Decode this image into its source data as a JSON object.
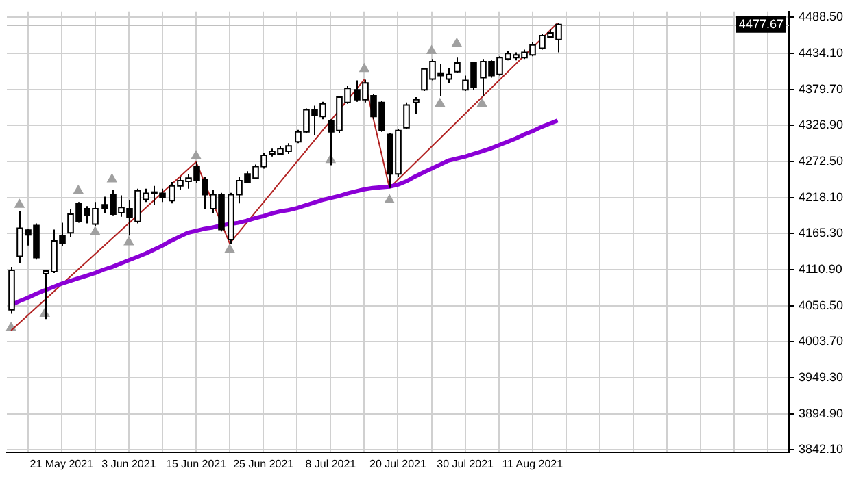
{
  "chart_data": {
    "type": "candlestick",
    "categories": [
      null,
      null,
      null,
      null,
      null,
      null,
      "21 May 2021",
      null,
      null,
      null,
      null,
      null,
      null,
      null,
      "3 Jun 2021",
      null,
      null,
      null,
      null,
      null,
      null,
      null,
      "15 Jun 2021",
      null,
      null,
      null,
      null,
      null,
      null,
      null,
      "25 Jun 2021",
      null,
      null,
      null,
      null,
      null,
      null,
      null,
      "8 Jul 2021",
      null,
      null,
      null,
      null,
      null,
      null,
      null,
      "20 Jul 2021",
      null,
      null,
      null,
      null,
      null,
      null,
      null,
      "30 Jul 2021",
      null,
      null,
      null,
      null,
      null,
      null,
      null,
      "11 Aug 2021",
      null,
      null,
      null,
      null,
      null,
      null,
      null,
      null,
      null,
      null,
      null,
      null,
      null,
      null,
      null,
      null,
      null,
      null,
      null,
      null,
      null,
      null,
      null,
      null,
      null,
      null,
      null,
      null,
      null,
      null
    ],
    "ohlc": [
      [
        4051,
        4115,
        4045,
        4110
      ],
      [
        4131,
        4198,
        4121,
        4173
      ],
      [
        4170,
        4172,
        4147,
        4163
      ],
      [
        4177,
        4180,
        4126,
        4129
      ],
      [
        4105,
        4110,
        4037,
        4109
      ],
      [
        4108,
        4171,
        4106,
        4154
      ],
      [
        4162,
        4181,
        4146,
        4150
      ],
      [
        4166,
        4202,
        4160,
        4194
      ],
      [
        4210,
        4212,
        4181,
        4183
      ],
      [
        4202,
        4206,
        4180,
        4192
      ],
      [
        4179,
        4212,
        4176,
        4202
      ],
      [
        4208,
        4220,
        4196,
        4202
      ],
      [
        4223,
        4230,
        4192,
        4194
      ],
      [
        4196,
        4222,
        4190,
        4204
      ],
      [
        4202,
        4215,
        4162,
        4189
      ],
      [
        4183,
        4232,
        4180,
        4229
      ],
      [
        4216,
        4232,
        4212,
        4225
      ],
      [
        4225,
        4236,
        4208,
        4227
      ],
      [
        4225,
        4232,
        4212,
        4219
      ],
      [
        4214,
        4242,
        4210,
        4236
      ],
      [
        4236,
        4250,
        4230,
        4244
      ],
      [
        4243,
        4254,
        4232,
        4248
      ],
      [
        4265,
        4272,
        4240,
        4244
      ],
      [
        4246,
        4250,
        4202,
        4223
      ],
      [
        4202,
        4230,
        4195,
        4223
      ],
      [
        4223,
        4226,
        4168,
        4171
      ],
      [
        4156,
        4226,
        4150,
        4223
      ],
      [
        4223,
        4250,
        4210,
        4244
      ],
      [
        4254,
        4258,
        4240,
        4242
      ],
      [
        4248,
        4268,
        4246,
        4265
      ],
      [
        4265,
        4286,
        4262,
        4282
      ],
      [
        4284,
        4292,
        4280,
        4288
      ],
      [
        4284,
        4296,
        4282,
        4292
      ],
      [
        4288,
        4300,
        4284,
        4296
      ],
      [
        4302,
        4320,
        4300,
        4317
      ],
      [
        4317,
        4352,
        4315,
        4350
      ],
      [
        4350,
        4356,
        4312,
        4342
      ],
      [
        4340,
        4362,
        4336,
        4359
      ],
      [
        4334,
        4336,
        4267,
        4317
      ],
      [
        4319,
        4371,
        4315,
        4369
      ],
      [
        4361,
        4386,
        4359,
        4382
      ],
      [
        4380,
        4394,
        4362,
        4365
      ],
      [
        4365,
        4395,
        4361,
        4390
      ],
      [
        4371,
        4374,
        4336,
        4340
      ],
      [
        4361,
        4363,
        4317,
        4319
      ],
      [
        4313,
        4315,
        4233,
        4254
      ],
      [
        4254,
        4321,
        4250,
        4319
      ],
      [
        4323,
        4361,
        4321,
        4357
      ],
      [
        4361,
        4369,
        4344,
        4365
      ],
      [
        4380,
        4413,
        4378,
        4411
      ],
      [
        4396,
        4426,
        4394,
        4422
      ],
      [
        4405,
        4418,
        4371,
        4401
      ],
      [
        4396,
        4413,
        4390,
        4403
      ],
      [
        4407,
        4428,
        4405,
        4420
      ],
      [
        4380,
        4401,
        4378,
        4394
      ],
      [
        4420,
        4422,
        4380,
        4384
      ],
      [
        4398,
        4426,
        4371,
        4422
      ],
      [
        4422,
        4424,
        4398,
        4401
      ],
      [
        4403,
        4430,
        4401,
        4428
      ],
      [
        4426,
        4438,
        4424,
        4434
      ],
      [
        4428,
        4436,
        4424,
        4432
      ],
      [
        4428,
        4440,
        4426,
        4436
      ],
      [
        4432,
        4451,
        4430,
        4447
      ],
      [
        4442,
        4463,
        4440,
        4461
      ],
      [
        4459,
        4470,
        4457,
        4465
      ],
      [
        4455,
        4480,
        4436,
        4477.67
      ],
      null,
      null,
      null,
      null,
      null,
      null,
      null,
      null,
      null,
      null,
      null,
      null,
      null,
      null,
      null,
      null,
      null,
      null,
      null,
      null,
      null,
      null,
      null,
      null,
      null,
      null,
      null
    ],
    "series": [
      {
        "type": "line",
        "color": "#8b00d6",
        "marker": "none",
        "values": [
          4058,
          4064,
          4069,
          4075,
          4080,
          4085,
          4090,
          4094,
          4098,
          4102,
          4106,
          4111,
          4115,
          4120,
          4125,
          4130,
          4135,
          4141,
          4147,
          4154,
          4160,
          4166,
          4169,
          4172,
          4174,
          4177,
          4179,
          4181,
          4184,
          4188,
          4191,
          4195,
          4198,
          4200,
          4203,
          4207,
          4211,
          4215,
          4218,
          4221,
          4225,
          4228,
          4231,
          4233,
          4234,
          4235,
          4238,
          4243,
          4250,
          4256,
          4262,
          4268,
          4274,
          4277,
          4280,
          4284,
          4288,
          4292,
          4297,
          4302,
          4307,
          4313,
          4318,
          4324,
          4329,
          4334,
          null,
          null,
          null,
          null,
          null,
          null,
          null,
          null,
          null,
          null,
          null,
          null,
          null,
          null,
          null,
          null,
          null,
          null,
          null,
          null,
          null,
          null,
          null,
          null,
          null,
          null,
          null
        ]
      },
      {
        "type": "line",
        "color": "#b22222",
        "marker": "none",
        "values": [
          4020,
          null,
          null,
          null,
          null,
          null,
          null,
          null,
          null,
          null,
          null,
          null,
          null,
          null,
          null,
          null,
          null,
          null,
          null,
          null,
          null,
          null,
          4272,
          null,
          null,
          null,
          4150,
          null,
          null,
          null,
          null,
          null,
          null,
          null,
          null,
          null,
          null,
          null,
          null,
          null,
          null,
          null,
          4395,
          null,
          null,
          4233,
          null,
          null,
          null,
          null,
          null,
          null,
          null,
          null,
          null,
          null,
          null,
          null,
          null,
          null,
          null,
          null,
          null,
          null,
          null,
          4480,
          null,
          null,
          null,
          null,
          null,
          null,
          null,
          null,
          null,
          null,
          null,
          null,
          null,
          null,
          null,
          null,
          null,
          null,
          null,
          null,
          null,
          null,
          null,
          null,
          null,
          null,
          null
        ]
      },
      {
        "type": "scatter",
        "color": "#a0a0a0",
        "marker": "triangle",
        "values": [
          null,
          4208,
          null,
          null,
          null,
          null,
          null,
          null,
          4229,
          null,
          null,
          null,
          4246,
          null,
          null,
          null,
          null,
          null,
          null,
          null,
          null,
          null,
          4281,
          null,
          null,
          null,
          null,
          null,
          null,
          null,
          null,
          null,
          null,
          null,
          null,
          null,
          null,
          null,
          null,
          null,
          null,
          null,
          4411,
          null,
          null,
          null,
          null,
          null,
          null,
          null,
          4438,
          null,
          null,
          4449,
          null,
          null,
          null,
          null,
          null,
          null,
          null,
          null,
          null,
          null,
          null,
          null,
          null,
          null,
          null,
          null,
          null,
          null,
          null,
          null,
          null,
          null,
          null,
          null,
          null,
          null,
          null,
          null,
          null,
          null,
          null,
          null,
          null,
          null,
          null,
          null,
          null,
          null,
          null
        ]
      },
      {
        "type": "scatter",
        "color": "#a0a0a0",
        "marker": "triangle",
        "values": [
          4024,
          null,
          null,
          null,
          4045,
          null,
          null,
          null,
          null,
          null,
          4167,
          null,
          null,
          null,
          4152,
          null,
          null,
          null,
          null,
          null,
          null,
          null,
          null,
          null,
          null,
          null,
          4141,
          null,
          null,
          null,
          null,
          null,
          null,
          null,
          null,
          null,
          null,
          null,
          4275,
          null,
          null,
          null,
          null,
          null,
          null,
          4215,
          null,
          null,
          null,
          null,
          null,
          4359,
          null,
          null,
          null,
          null,
          4359,
          null,
          null,
          null,
          null,
          null,
          null,
          null,
          null,
          null,
          null,
          null,
          null,
          null,
          null,
          null,
          null,
          null,
          null,
          null,
          null,
          null,
          null,
          null,
          null,
          null,
          null,
          null,
          null,
          null,
          null,
          null,
          null,
          null,
          null,
          null,
          null
        ]
      }
    ],
    "ylim": [
      3838,
      4497
    ],
    "yticks": [
      {
        "value": 3842.1,
        "label": "3842.10"
      },
      {
        "value": 3894.9,
        "label": "3894.90"
      },
      {
        "value": 3949.3,
        "label": "3949.30"
      },
      {
        "value": 4003.7,
        "label": "4003.70"
      },
      {
        "value": 4056.5,
        "label": "4056.50"
      },
      {
        "value": 4110.9,
        "label": "4110.90"
      },
      {
        "value": 4165.3,
        "label": "4165.30"
      },
      {
        "value": 4218.1,
        "label": "4218.10"
      },
      {
        "value": 4272.5,
        "label": "4272.50"
      },
      {
        "value": 4326.9,
        "label": "4326.90"
      },
      {
        "value": 4379.7,
        "label": "4379.70"
      },
      {
        "value": 4434.1,
        "label": "4434.10"
      },
      {
        "value": 4488.5,
        "label": "4488.50"
      }
    ],
    "ref_lines": [
      {
        "axis": "y",
        "value": 4477.67,
        "label": "4477.67",
        "color": "#c0c0c0"
      }
    ],
    "grid": true,
    "legend": false
  }
}
